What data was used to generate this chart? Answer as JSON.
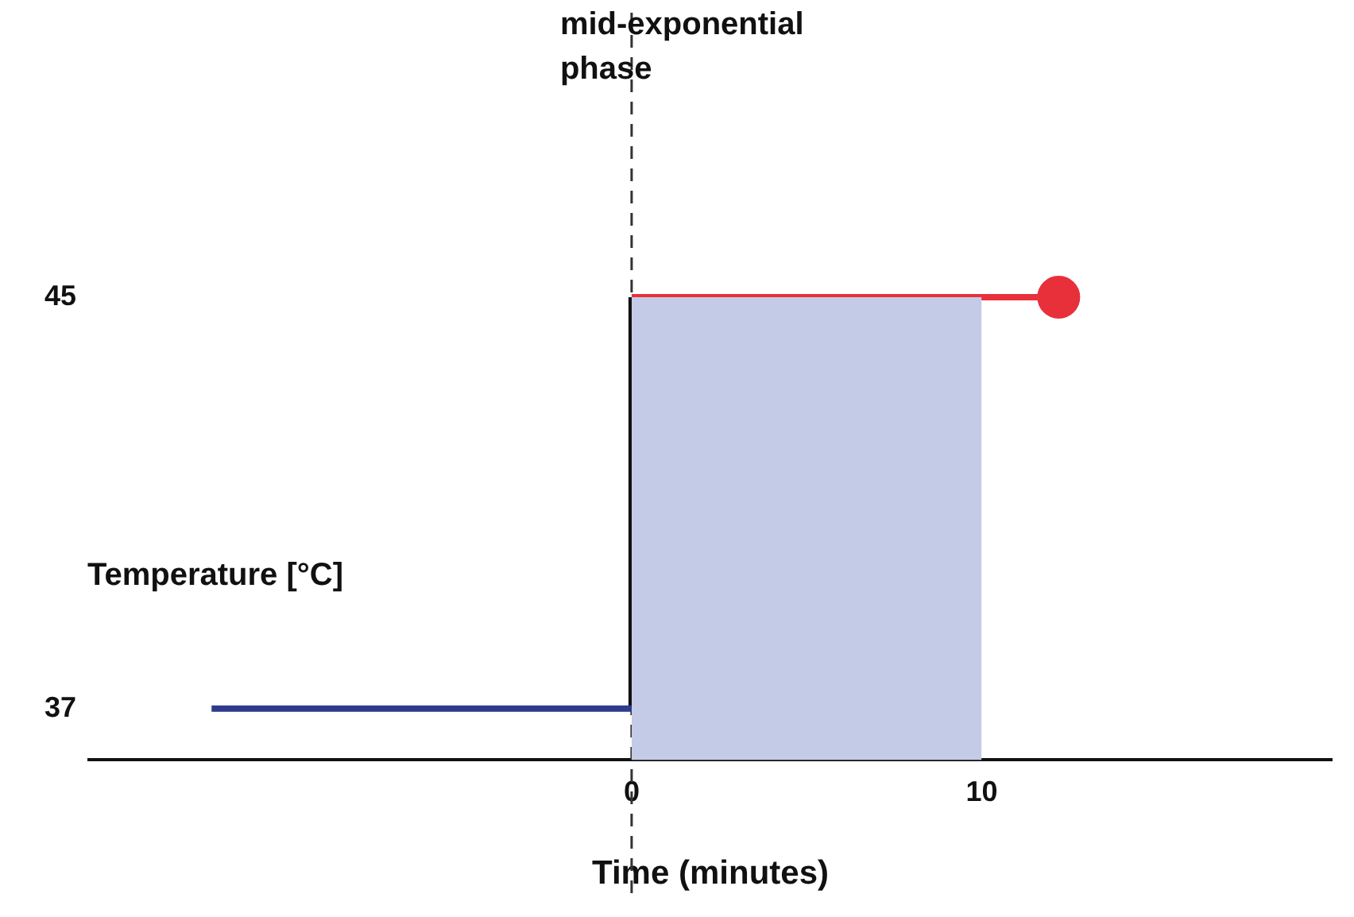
{
  "chart_data": {
    "type": "line",
    "xlabel": "Time (minutes)",
    "ylabel": "Temperature [°C]",
    "xlim": [
      -15.5,
      20
    ],
    "ylim": [
      36,
      45
    ],
    "xticks": [
      0,
      10
    ],
    "yticks": [
      37,
      45
    ],
    "grid": false,
    "legend": false,
    "series": [
      {
        "type": "area",
        "color": "#c3cbe6",
        "x": [
          0,
          10
        ],
        "values": [
          45,
          45
        ]
      },
      {
        "type": "line",
        "color": "#2e3a8c",
        "x": [
          -12,
          0
        ],
        "values": [
          37,
          37
        ]
      },
      {
        "type": "line",
        "color": "#111111",
        "x": [
          0,
          0
        ],
        "values": [
          37,
          45
        ]
      },
      {
        "type": "line",
        "color": "#e8303a",
        "x": [
          0,
          12.2
        ],
        "values": [
          45,
          45
        ]
      },
      {
        "type": "scatter",
        "color": "#e8303a",
        "marker": "circle",
        "x": [
          12.2
        ],
        "values": [
          45
        ]
      }
    ],
    "ref_lines": [
      {
        "axis": "x",
        "value": 0,
        "label": "mid-exponential phase",
        "line_style": "dashed",
        "color": "#333333"
      }
    ]
  }
}
